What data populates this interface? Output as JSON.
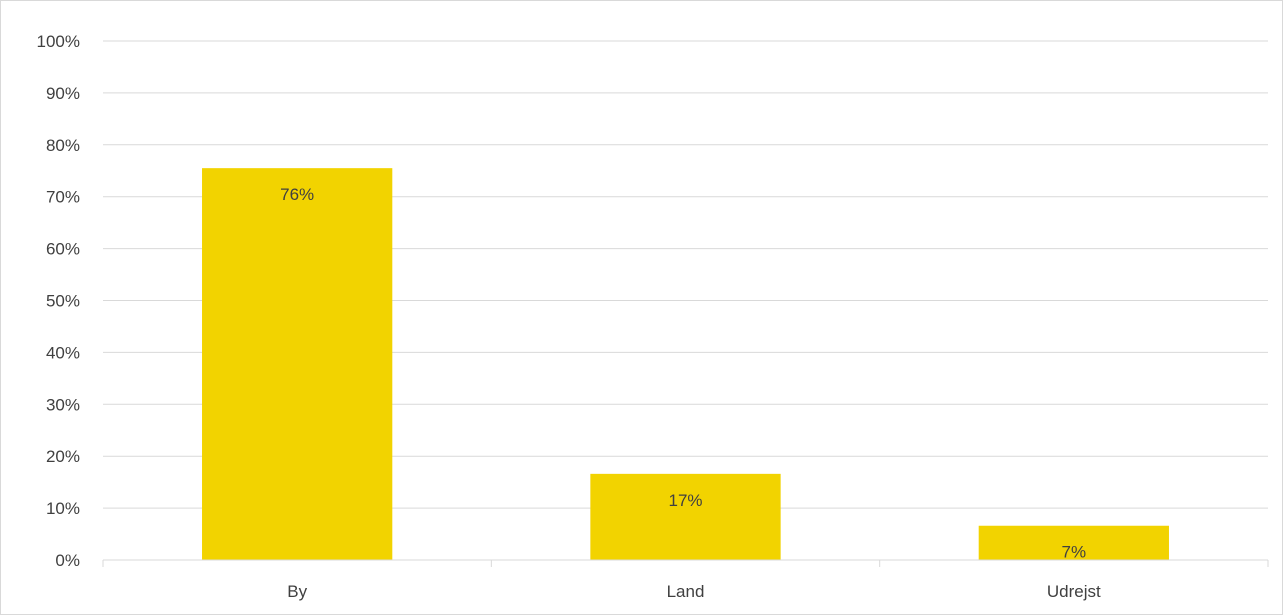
{
  "chart_data": {
    "type": "bar",
    "categories": [
      "By",
      "Land",
      "Udrejst"
    ],
    "values": [
      0.755,
      0.166,
      0.066
    ],
    "data_labels": [
      "76%",
      "17%",
      "7%"
    ],
    "ylim": [
      0,
      1
    ],
    "yticks": [
      "0%",
      "10%",
      "20%",
      "30%",
      "40%",
      "50%",
      "60%",
      "70%",
      "80%",
      "90%",
      "100%"
    ],
    "grid": true,
    "legend": "none",
    "bar_color": "#f2d300",
    "gridline_color": "#d9d9d9",
    "text_color": "#404040"
  }
}
